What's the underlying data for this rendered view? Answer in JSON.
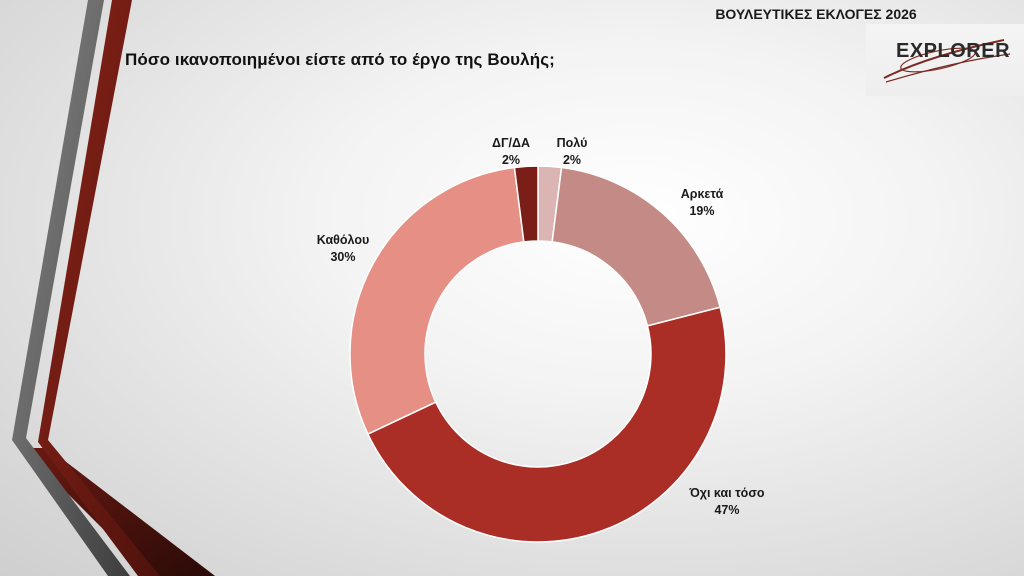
{
  "header": {
    "title": "ΒΟΥΛΕΥΤΙΚΕΣ ΕΚΛΟΓΕΣ 2026",
    "logo_text": "EXPLORER"
  },
  "question": "Πόσο ικανοποιημένοι είστε από το έργο της Βουλής;",
  "colors": {
    "poly": "#dbb5b3",
    "arketa": "#c38a86",
    "oxi_kai_toso": "#aa2e25",
    "katholou": "#e68f85",
    "dg_da": "#7a1e17"
  },
  "chart_data": {
    "type": "pie",
    "donut": true,
    "title": "Πόσο ικανοποιημένοι είστε από το έργο της Βουλής;",
    "categories": [
      "Πολύ",
      "Αρκετά",
      "Όχι και τόσο",
      "Καθόλου",
      "ΔΓ/ΔΑ"
    ],
    "values": [
      2,
      19,
      47,
      30,
      2
    ],
    "value_labels": [
      "2%",
      "19%",
      "47%",
      "30%",
      "2%"
    ],
    "unit": "%",
    "colors": [
      "#dbb5b3",
      "#c38a86",
      "#aa2e25",
      "#e68f85",
      "#7a1e17"
    ],
    "start": "top",
    "direction": "clockwise",
    "legend": "none"
  }
}
